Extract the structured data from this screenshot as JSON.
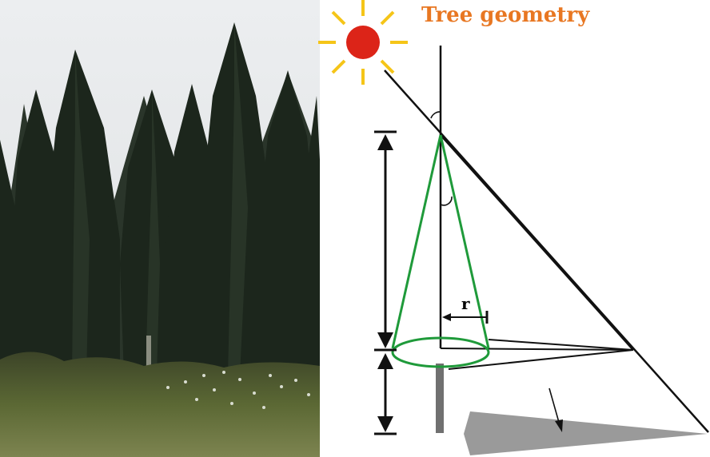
{
  "diagram": {
    "title": "Tree geometry",
    "radius_label": "r"
  },
  "colors": {
    "title": "#e87722",
    "sun_disc": "#dc2418",
    "sun_rays": "#f5c518",
    "crown_outline": "#1f9a3a",
    "lines": "#111111",
    "shadow_fill": "#9a9a9a",
    "trunk": "#707070",
    "sky": "#e6e8ea",
    "foliage": "#1c261c",
    "ground": "#4c5a30"
  },
  "icons": {
    "sun": "sun-icon",
    "photo": "cypress-forest-photo"
  }
}
